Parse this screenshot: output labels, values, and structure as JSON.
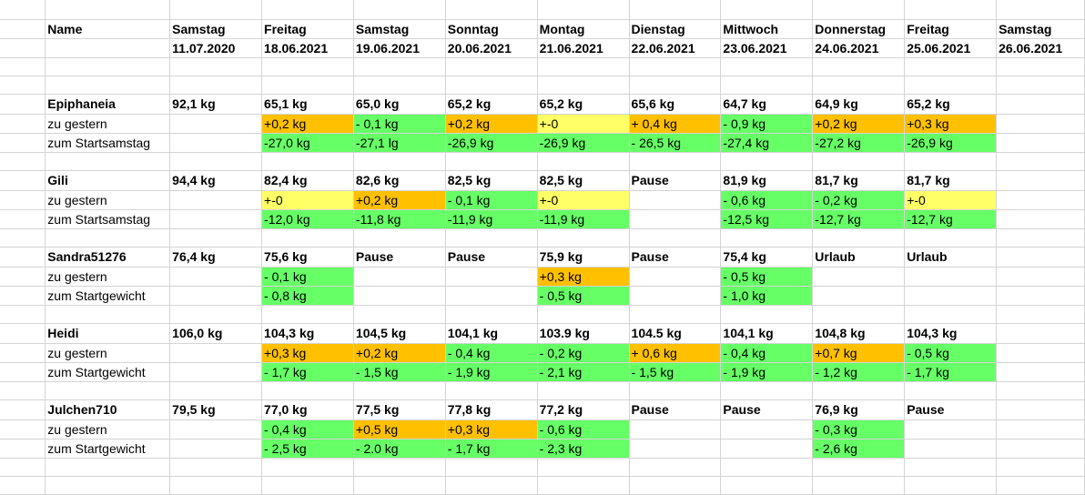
{
  "columns": [
    "Name",
    "c1",
    "c2",
    "c3",
    "c4",
    "c5",
    "c6",
    "c7",
    "c8",
    "c9",
    "c10"
  ],
  "colors": {
    "orange": "#ffc000",
    "green": "#66ff66",
    "yellow": "#ffff66",
    "gridline": "#d4d4d4"
  },
  "rows": [
    {
      "h": "mid",
      "cells": [
        {
          "t": ""
        },
        {
          "t": ""
        },
        {
          "t": ""
        },
        {
          "t": ""
        },
        {
          "t": ""
        },
        {
          "t": ""
        },
        {
          "t": ""
        },
        {
          "t": ""
        },
        {
          "t": ""
        },
        {
          "t": ""
        },
        {
          "t": ""
        }
      ]
    },
    {
      "h": "mid",
      "cells": [
        {
          "t": "Name",
          "b": 1
        },
        {
          "t": "Samstag",
          "b": 1
        },
        {
          "t": "Freitag",
          "b": 1
        },
        {
          "t": "Samstag",
          "b": 1
        },
        {
          "t": "Sonntag",
          "b": 1
        },
        {
          "t": "Montag",
          "b": 1
        },
        {
          "t": "Dienstag",
          "b": 1
        },
        {
          "t": "Mittwoch",
          "b": 1
        },
        {
          "t": "Donnerstag",
          "b": 1
        },
        {
          "t": "Freitag",
          "b": 1
        },
        {
          "t": "Samstag",
          "b": 1
        }
      ]
    },
    {
      "h": "mid",
      "cells": [
        {
          "t": ""
        },
        {
          "t": "11.07.2020",
          "b": 1
        },
        {
          "t": "18.06.2021",
          "b": 1
        },
        {
          "t": "19.06.2021",
          "b": 1
        },
        {
          "t": "20.06.2021",
          "b": 1
        },
        {
          "t": "21.06.2021",
          "b": 1
        },
        {
          "t": "22.06.2021",
          "b": 1
        },
        {
          "t": "23.06.2021",
          "b": 1
        },
        {
          "t": "24.06.2021",
          "b": 1
        },
        {
          "t": "25.06.2021",
          "b": 1
        },
        {
          "t": "26.06.2021",
          "b": 1
        }
      ]
    },
    {
      "h": "",
      "cells": [
        {
          "t": ""
        },
        {
          "t": ""
        },
        {
          "t": ""
        },
        {
          "t": ""
        },
        {
          "t": ""
        },
        {
          "t": ""
        },
        {
          "t": ""
        },
        {
          "t": ""
        },
        {
          "t": ""
        },
        {
          "t": ""
        },
        {
          "t": ""
        }
      ]
    },
    {
      "h": "",
      "cells": [
        {
          "t": ""
        },
        {
          "t": ""
        },
        {
          "t": ""
        },
        {
          "t": ""
        },
        {
          "t": ""
        },
        {
          "t": ""
        },
        {
          "t": ""
        },
        {
          "t": ""
        },
        {
          "t": ""
        },
        {
          "t": ""
        },
        {
          "t": ""
        }
      ]
    },
    {
      "h": "tall",
      "cells": [
        {
          "t": "Epiphaneia",
          "b": 1
        },
        {
          "t": "92,1 kg",
          "b": 1
        },
        {
          "t": "65,1 kg",
          "b": 1
        },
        {
          "t": "65,0 kg",
          "b": 1
        },
        {
          "t": "65,2 kg",
          "b": 1
        },
        {
          "t": "65,2 kg",
          "b": 1
        },
        {
          "t": "65,6 kg",
          "b": 1
        },
        {
          "t": "64,7 kg",
          "b": 1
        },
        {
          "t": "64,9 kg",
          "b": 1
        },
        {
          "t": "65,2 kg",
          "b": 1
        },
        {
          "t": ""
        }
      ]
    },
    {
      "h": "",
      "cells": [
        {
          "t": "zu gestern"
        },
        {
          "t": ""
        },
        {
          "t": "+0,2 kg",
          "c": "orange"
        },
        {
          "t": "- 0,1 kg",
          "c": "green"
        },
        {
          "t": "+0,2 kg",
          "c": "orange"
        },
        {
          "t": "+-0",
          "c": "yellow"
        },
        {
          "t": "+ 0,4 kg",
          "c": "orange"
        },
        {
          "t": "- 0,9 kg",
          "c": "green"
        },
        {
          "t": "+0,2 kg",
          "c": "orange"
        },
        {
          "t": "+0,3 kg",
          "c": "orange"
        },
        {
          "t": ""
        }
      ]
    },
    {
      "h": "",
      "cells": [
        {
          "t": "zum Startsamstag"
        },
        {
          "t": ""
        },
        {
          "t": "-27,0 kg",
          "c": "green"
        },
        {
          "t": "-27,1 lg",
          "c": "green"
        },
        {
          "t": "-26,9 kg",
          "c": "green"
        },
        {
          "t": "-26,9 kg",
          "c": "green"
        },
        {
          "t": "- 26,5 kg",
          "c": "green"
        },
        {
          "t": "-27,4 kg",
          "c": "green"
        },
        {
          "t": "-27,2 kg",
          "c": "green"
        },
        {
          "t": "-26,9 kg",
          "c": "green"
        },
        {
          "t": ""
        }
      ]
    },
    {
      "h": "",
      "cells": [
        {
          "t": ""
        },
        {
          "t": ""
        },
        {
          "t": ""
        },
        {
          "t": ""
        },
        {
          "t": ""
        },
        {
          "t": ""
        },
        {
          "t": ""
        },
        {
          "t": ""
        },
        {
          "t": ""
        },
        {
          "t": ""
        },
        {
          "t": ""
        }
      ]
    },
    {
      "h": "tall",
      "cells": [
        {
          "t": "Gili",
          "b": 1
        },
        {
          "t": "94,4 kg",
          "b": 1
        },
        {
          "t": "82,4 kg",
          "b": 1
        },
        {
          "t": "82,6 kg",
          "b": 1
        },
        {
          "t": "82,5 kg",
          "b": 1
        },
        {
          "t": "82,5 kg",
          "b": 1
        },
        {
          "t": "Pause",
          "b": 1
        },
        {
          "t": "81,9 kg",
          "b": 1
        },
        {
          "t": "81,7 kg",
          "b": 1
        },
        {
          "t": "81,7 kg",
          "b": 1
        },
        {
          "t": ""
        }
      ]
    },
    {
      "h": "",
      "cells": [
        {
          "t": "zu gestern"
        },
        {
          "t": ""
        },
        {
          "t": "+-0",
          "c": "yellow"
        },
        {
          "t": "+0,2 kg",
          "c": "orange"
        },
        {
          "t": "- 0,1 kg",
          "c": "green"
        },
        {
          "t": "+-0",
          "c": "yellow"
        },
        {
          "t": ""
        },
        {
          "t": "- 0,6 kg",
          "c": "green"
        },
        {
          "t": "- 0,2 kg",
          "c": "green"
        },
        {
          "t": "+-0",
          "c": "yellow"
        },
        {
          "t": ""
        }
      ]
    },
    {
      "h": "",
      "cells": [
        {
          "t": "zum Startsamstag"
        },
        {
          "t": ""
        },
        {
          "t": "-12,0 kg",
          "c": "green"
        },
        {
          "t": "-11,8 kg",
          "c": "green"
        },
        {
          "t": "-11,9 kg",
          "c": "green"
        },
        {
          "t": "-11,9 kg",
          "c": "green"
        },
        {
          "t": ""
        },
        {
          "t": "-12,5 kg",
          "c": "green"
        },
        {
          "t": "-12,7 kg",
          "c": "green"
        },
        {
          "t": "-12,7 kg",
          "c": "green"
        },
        {
          "t": ""
        }
      ]
    },
    {
      "h": "",
      "cells": [
        {
          "t": ""
        },
        {
          "t": ""
        },
        {
          "t": ""
        },
        {
          "t": ""
        },
        {
          "t": ""
        },
        {
          "t": ""
        },
        {
          "t": ""
        },
        {
          "t": ""
        },
        {
          "t": ""
        },
        {
          "t": ""
        },
        {
          "t": ""
        }
      ]
    },
    {
      "h": "tall",
      "cells": [
        {
          "t": "Sandra51276",
          "b": 1
        },
        {
          "t": "76,4 kg",
          "b": 1
        },
        {
          "t": "75,6 kg",
          "b": 1
        },
        {
          "t": "Pause",
          "b": 1
        },
        {
          "t": "Pause",
          "b": 1
        },
        {
          "t": "75,9 kg",
          "b": 1
        },
        {
          "t": "Pause",
          "b": 1
        },
        {
          "t": "75,4 kg",
          "b": 1
        },
        {
          "t": "Urlaub",
          "b": 1
        },
        {
          "t": "Urlaub",
          "b": 1
        },
        {
          "t": ""
        }
      ]
    },
    {
      "h": "",
      "cells": [
        {
          "t": "zu gestern"
        },
        {
          "t": ""
        },
        {
          "t": "- 0,1 kg",
          "c": "green"
        },
        {
          "t": ""
        },
        {
          "t": ""
        },
        {
          "t": "+0,3 kg",
          "c": "orange"
        },
        {
          "t": ""
        },
        {
          "t": "- 0,5 kg",
          "c": "green"
        },
        {
          "t": ""
        },
        {
          "t": ""
        },
        {
          "t": ""
        }
      ]
    },
    {
      "h": "",
      "cells": [
        {
          "t": "zum Startgewicht"
        },
        {
          "t": ""
        },
        {
          "t": "- 0,8 kg",
          "c": "green"
        },
        {
          "t": ""
        },
        {
          "t": ""
        },
        {
          "t": "- 0,5 kg",
          "c": "green"
        },
        {
          "t": ""
        },
        {
          "t": "- 1,0 kg",
          "c": "green"
        },
        {
          "t": ""
        },
        {
          "t": ""
        },
        {
          "t": ""
        }
      ]
    },
    {
      "h": "",
      "cells": [
        {
          "t": ""
        },
        {
          "t": ""
        },
        {
          "t": ""
        },
        {
          "t": ""
        },
        {
          "t": ""
        },
        {
          "t": ""
        },
        {
          "t": ""
        },
        {
          "t": ""
        },
        {
          "t": ""
        },
        {
          "t": ""
        },
        {
          "t": ""
        }
      ]
    },
    {
      "h": "tall",
      "cells": [
        {
          "t": "Heidi",
          "b": 1
        },
        {
          "t": "106,0 kg",
          "b": 1
        },
        {
          "t": "104,3 kg",
          "b": 1
        },
        {
          "t": "104,5 kg",
          "b": 1
        },
        {
          "t": "104,1 kg",
          "b": 1
        },
        {
          "t": "103.9 kg",
          "b": 1
        },
        {
          "t": "104.5 kg",
          "b": 1
        },
        {
          "t": "104,1 kg",
          "b": 1
        },
        {
          "t": "104,8 kg",
          "b": 1
        },
        {
          "t": "104,3 kg",
          "b": 1
        },
        {
          "t": ""
        }
      ]
    },
    {
      "h": "",
      "cells": [
        {
          "t": "zu gestern"
        },
        {
          "t": ""
        },
        {
          "t": "+0,3 kg",
          "c": "orange"
        },
        {
          "t": "+0,2 kg",
          "c": "orange"
        },
        {
          "t": "- 0,4 kg",
          "c": "green"
        },
        {
          "t": "- 0,2 kg",
          "c": "green"
        },
        {
          "t": "+ 0,6 kg",
          "c": "orange"
        },
        {
          "t": "- 0,4 kg",
          "c": "green"
        },
        {
          "t": "+0,7 kg",
          "c": "orange"
        },
        {
          "t": "- 0,5 kg",
          "c": "green"
        },
        {
          "t": ""
        }
      ]
    },
    {
      "h": "",
      "cells": [
        {
          "t": "zum Startgewicht"
        },
        {
          "t": ""
        },
        {
          "t": "- 1,7 kg",
          "c": "green"
        },
        {
          "t": "- 1,5 kg",
          "c": "green"
        },
        {
          "t": "- 1,9 kg",
          "c": "green"
        },
        {
          "t": "- 2,1 kg",
          "c": "green"
        },
        {
          "t": "- 1,5 kg",
          "c": "green"
        },
        {
          "t": "- 1,9 kg",
          "c": "green"
        },
        {
          "t": "- 1,2 kg",
          "c": "green"
        },
        {
          "t": "- 1,7 kg",
          "c": "green"
        },
        {
          "t": ""
        }
      ]
    },
    {
      "h": "",
      "cells": [
        {
          "t": ""
        },
        {
          "t": ""
        },
        {
          "t": ""
        },
        {
          "t": ""
        },
        {
          "t": ""
        },
        {
          "t": ""
        },
        {
          "t": ""
        },
        {
          "t": ""
        },
        {
          "t": ""
        },
        {
          "t": ""
        },
        {
          "t": ""
        }
      ]
    },
    {
      "h": "tall",
      "cells": [
        {
          "t": "Julchen710",
          "b": 1
        },
        {
          "t": "79,5 kg",
          "b": 1
        },
        {
          "t": "77,0 kg",
          "b": 1
        },
        {
          "t": "77,5 kg",
          "b": 1
        },
        {
          "t": "77,8 kg",
          "b": 1
        },
        {
          "t": "77,2 kg",
          "b": 1
        },
        {
          "t": "Pause",
          "b": 1
        },
        {
          "t": "Pause",
          "b": 1
        },
        {
          "t": "76,9 kg",
          "b": 1
        },
        {
          "t": "Pause",
          "b": 1
        },
        {
          "t": ""
        }
      ]
    },
    {
      "h": "",
      "cells": [
        {
          "t": "zu gestern"
        },
        {
          "t": ""
        },
        {
          "t": "- 0,4 kg",
          "c": "green"
        },
        {
          "t": "+0,5 kg",
          "c": "orange"
        },
        {
          "t": "+0,3 kg",
          "c": "orange"
        },
        {
          "t": "- 0,6 kg",
          "c": "green"
        },
        {
          "t": ""
        },
        {
          "t": ""
        },
        {
          "t": "- 0,3 kg",
          "c": "green"
        },
        {
          "t": ""
        },
        {
          "t": ""
        }
      ]
    },
    {
      "h": "",
      "cells": [
        {
          "t": "zum Startgewicht"
        },
        {
          "t": ""
        },
        {
          "t": "- 2,5 kg",
          "c": "green"
        },
        {
          "t": "- 2.0 kg",
          "c": "green"
        },
        {
          "t": "- 1,7 kg",
          "c": "green"
        },
        {
          "t": "- 2,3 kg",
          "c": "green"
        },
        {
          "t": ""
        },
        {
          "t": ""
        },
        {
          "t": "- 2,6 kg",
          "c": "green"
        },
        {
          "t": ""
        },
        {
          "t": ""
        }
      ]
    },
    {
      "h": "",
      "cells": [
        {
          "t": ""
        },
        {
          "t": ""
        },
        {
          "t": ""
        },
        {
          "t": ""
        },
        {
          "t": ""
        },
        {
          "t": ""
        },
        {
          "t": ""
        },
        {
          "t": ""
        },
        {
          "t": ""
        },
        {
          "t": ""
        },
        {
          "t": ""
        }
      ]
    },
    {
      "h": "",
      "cells": [
        {
          "t": ""
        },
        {
          "t": ""
        },
        {
          "t": ""
        },
        {
          "t": ""
        },
        {
          "t": ""
        },
        {
          "t": ""
        },
        {
          "t": ""
        },
        {
          "t": ""
        },
        {
          "t": ""
        },
        {
          "t": ""
        },
        {
          "t": ""
        }
      ]
    }
  ]
}
